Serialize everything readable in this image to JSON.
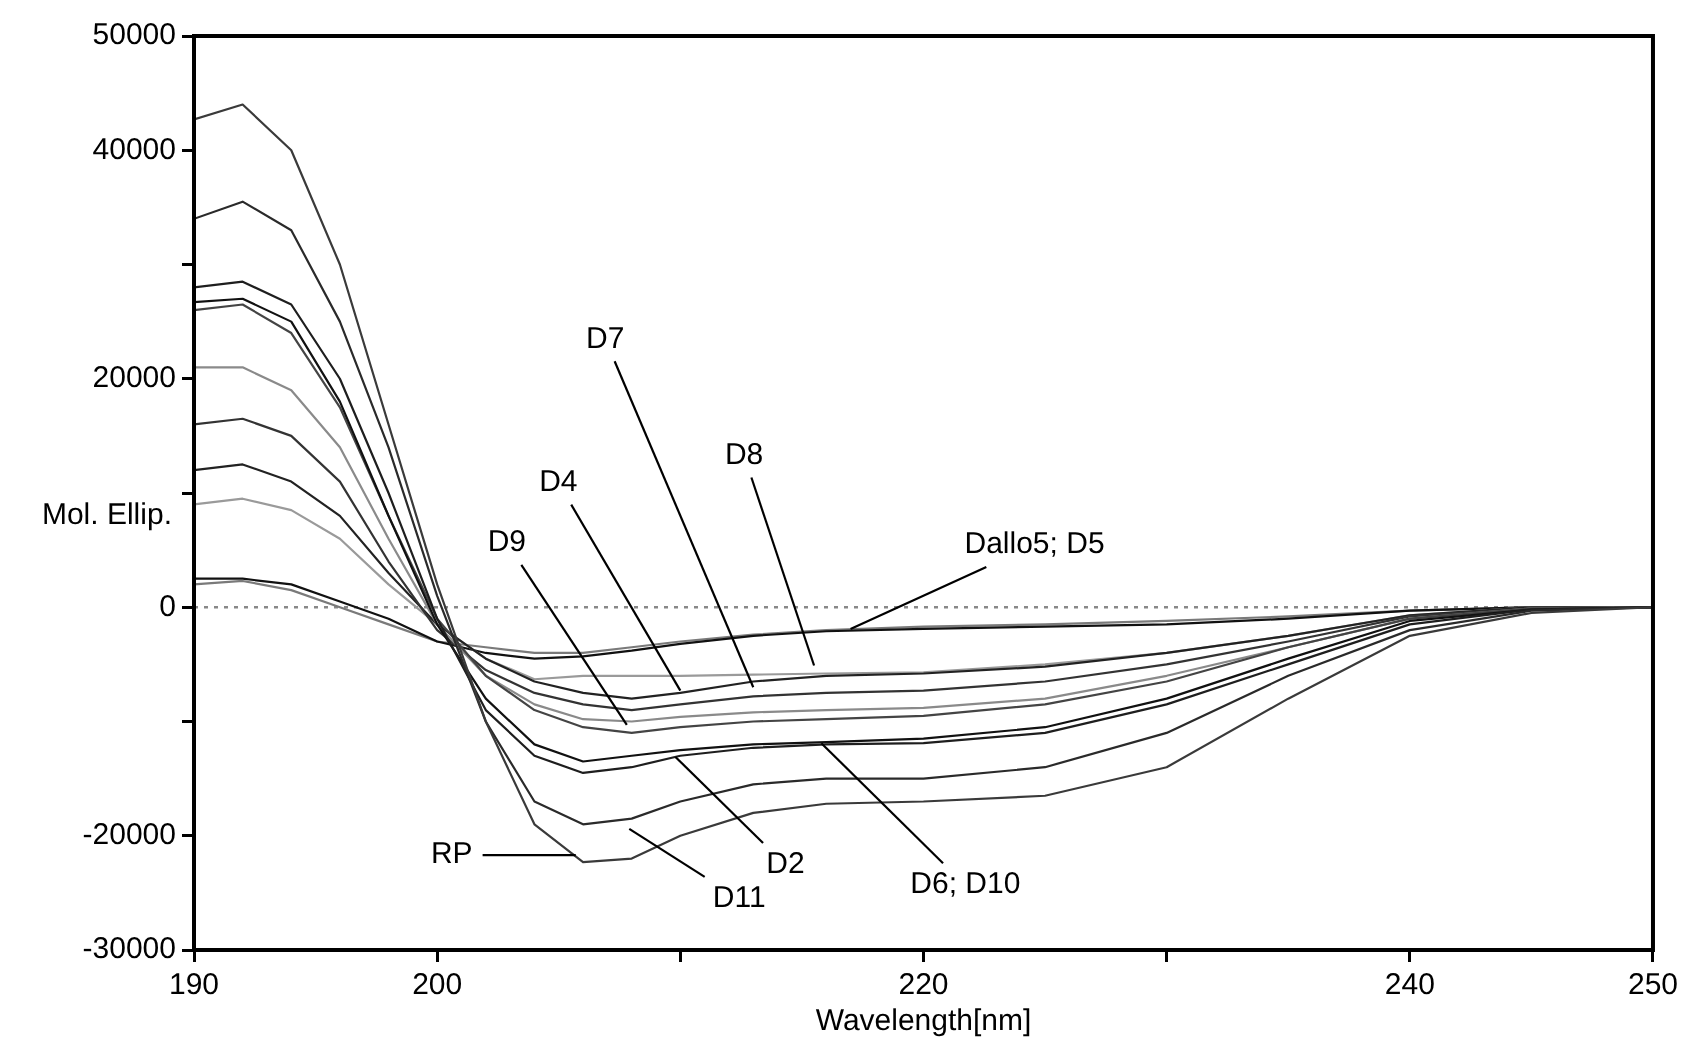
{
  "chart_data": {
    "type": "line",
    "xlabel": "Wavelength[nm]",
    "ylabel": "Mol. Ellip.",
    "x": [
      190,
      192,
      194,
      196,
      198,
      200,
      202,
      204,
      206,
      208,
      210,
      213,
      216,
      220,
      225,
      230,
      235,
      240,
      245,
      250
    ],
    "series": [
      {
        "color": "#3a3a3a",
        "values": [
          42700,
          44000,
          40000,
          30000,
          16000,
          2000,
          -10000,
          -19000,
          -22300,
          -22000,
          -20000,
          -18000,
          -17200,
          -17000,
          -16500,
          -14000,
          -8000,
          -2500,
          -500,
          0
        ]
      },
      {
        "color": "#2a2a2a",
        "values": [
          34000,
          35500,
          33000,
          25000,
          14000,
          1000,
          -10000,
          -17000,
          -19000,
          -18500,
          -17000,
          -15500,
          -15000,
          -15000,
          -14000,
          -11000,
          -6000,
          -2000,
          -300,
          0
        ]
      },
      {
        "color": "#1e1e1e",
        "values": [
          28000,
          28500,
          26500,
          20000,
          10000,
          -1000,
          -9000,
          -13000,
          -14500,
          -14000,
          -13000,
          -12300,
          -12000,
          -11900,
          -11000,
          -8500,
          -5000,
          -1500,
          -200,
          0
        ]
      },
      {
        "color": "#111111",
        "values": [
          26700,
          27000,
          25000,
          18000,
          8000,
          -1500,
          -8000,
          -12000,
          -13500,
          -13000,
          -12500,
          -12000,
          -11800,
          -11500,
          -10500,
          -8000,
          -4500,
          -1200,
          -200,
          0
        ]
      },
      {
        "color": "#444444",
        "values": [
          26000,
          26500,
          24000,
          17500,
          8000,
          -1000,
          -6000,
          -9000,
          -10500,
          -11000,
          -10500,
          -10000,
          -9800,
          -9500,
          -8500,
          -6500,
          -3500,
          -1000,
          -100,
          0
        ]
      },
      {
        "color": "#8a8a8a",
        "values": [
          21000,
          21000,
          19000,
          14000,
          6000,
          -1500,
          -6000,
          -8500,
          -9800,
          -10000,
          -9600,
          -9200,
          -9000,
          -8800,
          -8000,
          -6000,
          -3500,
          -1000,
          -100,
          0
        ]
      },
      {
        "color": "#333333",
        "values": [
          16000,
          16500,
          15000,
          11000,
          4000,
          -2000,
          -5500,
          -7500,
          -8500,
          -9000,
          -8500,
          -7800,
          -7500,
          -7300,
          -6500,
          -5000,
          -3000,
          -800,
          -100,
          0
        ]
      },
      {
        "color": "#222222",
        "values": [
          12000,
          12500,
          11000,
          8000,
          3000,
          -1500,
          -4500,
          -6500,
          -7500,
          -8000,
          -7500,
          -6500,
          -6000,
          -5800,
          -5200,
          -4000,
          -2500,
          -700,
          0,
          0
        ]
      },
      {
        "color": "#9a9a9a",
        "values": [
          9000,
          9500,
          8500,
          6000,
          2000,
          -1500,
          -4500,
          -6300,
          -6000,
          -6000,
          -6000,
          -5900,
          -5800,
          -5700,
          -5000,
          -4000,
          -2500,
          -700,
          0,
          0
        ]
      },
      {
        "color": "#111111",
        "values": [
          2500,
          2500,
          2000,
          500,
          -1000,
          -3000,
          -4000,
          -4500,
          -4300,
          -3800,
          -3200,
          -2500,
          -2100,
          -1900,
          -1700,
          -1500,
          -1000,
          -300,
          0,
          0
        ]
      },
      {
        "color": "#7a7a7a",
        "values": [
          2000,
          2300,
          1500,
          0,
          -1500,
          -3000,
          -3500,
          -4000,
          -4000,
          -3500,
          -3000,
          -2400,
          -2000,
          -1700,
          -1500,
          -1200,
          -800,
          -300,
          0,
          0
        ]
      }
    ],
    "xlim": [
      190,
      250
    ],
    "xticks": [
      190,
      200,
      {
        "value": 210,
        "label": null
      },
      220,
      {
        "value": 230,
        "label": null
      },
      240,
      250
    ],
    "ylim": [
      -30000,
      50000
    ],
    "yticks": [
      -30000,
      -20000,
      {
        "value": -10000,
        "label": null
      },
      0,
      {
        "value": 10000,
        "label": null
      },
      20000,
      {
        "value": 30000,
        "label": null
      },
      40000,
      50000
    ],
    "ref_lines": [
      {
        "axis": "y",
        "value": 0,
        "color": "#888888",
        "line_style": "dotted"
      }
    ],
    "annotations": [
      {
        "text": "D7",
        "x": 213,
        "y": -7000
      },
      {
        "text": "D4",
        "x": 210,
        "y": -7300
      },
      {
        "text": "D9",
        "x": 207.8,
        "y": -10300
      },
      {
        "text": "D8",
        "x": 215.5,
        "y": -5100
      },
      {
        "text": "Dallo5; D5",
        "x": 217,
        "y": -1900
      },
      {
        "text": "D6; D10",
        "x": 215.8,
        "y": -11900
      },
      {
        "text": "D2",
        "x": 209.8,
        "y": -13100
      },
      {
        "text": "D11",
        "x": 207.9,
        "y": -19400
      },
      {
        "text": "RP",
        "x": 205.7,
        "y": -21700
      }
    ]
  }
}
